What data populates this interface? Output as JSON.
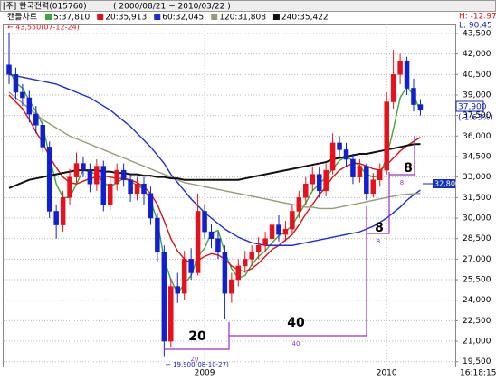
{
  "chart_data": {
    "type": "candlestick",
    "title": "[주] 한국전력(015760)",
    "subtitle": "( 2000/08/21 ~ 2010/03/22 )",
    "high_label": "H: -12.97",
    "low_label": "L: 90.45",
    "chart_label": "캔들차트",
    "max_note": "← 43,550(07-12-24)",
    "min_note": "← 19,900(08-10-27)",
    "last_price_label": "37,900",
    "change_label": "(-1.63%)",
    "level_label": "32,800",
    "time_label": "16:18:15",
    "categories": [
      null,
      null,
      null,
      null,
      null,
      null,
      null,
      null,
      null,
      null,
      null,
      null,
      null,
      null,
      null,
      null,
      null,
      null,
      null,
      null,
      null,
      null,
      null,
      null,
      null,
      null,
      null,
      null,
      null,
      "2009",
      null,
      null,
      null,
      null,
      null,
      null,
      null,
      null,
      null,
      null,
      null,
      null,
      null,
      null,
      null,
      null,
      null,
      null,
      null,
      null,
      null,
      null,
      null,
      null,
      null,
      null,
      "2010",
      null,
      null,
      null,
      null,
      null
    ],
    "open": [
      41200,
      40500,
      39200,
      38800,
      37600,
      36800,
      35200,
      30500,
      29500,
      31500,
      33000,
      34000,
      33500,
      32500,
      33800,
      31000,
      32500,
      33500,
      32800,
      31800,
      32500,
      31800,
      30000,
      27500,
      21000,
      25000,
      24500,
      27000,
      26000,
      30500,
      29000,
      28500,
      27500,
      24500,
      25500,
      26500,
      27000,
      27500,
      28000,
      28500,
      29500,
      28800,
      29200,
      30500,
      31500,
      32500,
      33200,
      32000,
      33500,
      35500,
      35000,
      34300,
      33000,
      33800,
      31800,
      32800,
      33500,
      38500,
      40500,
      41500,
      39500,
      38300
    ],
    "high": [
      43550,
      41000,
      39800,
      39300,
      38200,
      37300,
      35600,
      31000,
      32000,
      33600,
      34800,
      34500,
      34000,
      34300,
      34200,
      33000,
      34000,
      34000,
      33200,
      33000,
      33000,
      32300,
      30400,
      28000,
      25600,
      26000,
      27600,
      27800,
      31800,
      31000,
      29600,
      29000,
      28000,
      26000,
      27000,
      27600,
      28000,
      28600,
      29000,
      30000,
      30200,
      29800,
      31000,
      32000,
      33000,
      33800,
      33700,
      34000,
      36200,
      36000,
      35500,
      34700,
      34300,
      34000,
      33300,
      34000,
      39200,
      42300,
      42000,
      41800,
      40200,
      38700
    ],
    "low": [
      39800,
      38700,
      38200,
      37000,
      36200,
      34800,
      30000,
      28500,
      29000,
      31000,
      32600,
      33000,
      31900,
      32000,
      30500,
      30600,
      32000,
      32300,
      31200,
      31300,
      31000,
      29500,
      26800,
      19900,
      20600,
      23800,
      24000,
      25500,
      25800,
      28500,
      27800,
      27000,
      22600,
      23800,
      25000,
      26000,
      26500,
      27000,
      27500,
      28000,
      28300,
      28300,
      28800,
      30000,
      31000,
      32000,
      31500,
      31600,
      33200,
      34500,
      33800,
      32500,
      32600,
      31300,
      31500,
      32300,
      33200,
      38000,
      39800,
      39000,
      37800,
      37500
    ],
    "close": [
      40500,
      39200,
      38800,
      37600,
      36800,
      35200,
      30500,
      29500,
      31500,
      33000,
      34000,
      33500,
      32500,
      33800,
      31000,
      32500,
      33500,
      32800,
      31800,
      32500,
      31800,
      30000,
      27500,
      21000,
      25000,
      24500,
      27000,
      26000,
      30500,
      29000,
      28500,
      27500,
      24500,
      25500,
      26500,
      27000,
      27500,
      28000,
      28500,
      29500,
      28800,
      29200,
      30500,
      31500,
      32500,
      33200,
      32000,
      33500,
      35500,
      35000,
      34300,
      33000,
      33800,
      31800,
      32800,
      33500,
      38500,
      40500,
      41500,
      39500,
      38300,
      37900
    ],
    "up_color": "#e8101a",
    "down_color": "#1020d0",
    "series": [
      {
        "name": "5:37,810",
        "color": "#3aa83a",
        "values": [
          40800,
          39900,
          39500,
          38600,
          37800,
          36800,
          34500,
          32500,
          31500,
          31500,
          32500,
          33500,
          33400,
          33200,
          32600,
          32300,
          32600,
          32900,
          32700,
          32400,
          32100,
          31300,
          29800,
          27000,
          25500,
          24500,
          25200,
          25800,
          27200,
          27800,
          28900,
          29100,
          27500,
          26300,
          25600,
          25800,
          26600,
          27200,
          27600,
          28200,
          28700,
          29000,
          29500,
          30300,
          31100,
          32000,
          32500,
          33000,
          33600,
          34200,
          34500,
          34200,
          33800,
          33200,
          33000,
          33100,
          34500,
          36500,
          38800,
          39600,
          39000,
          37810
        ]
      },
      {
        "name": "20:35,913",
        "color": "#e01010",
        "values": [
          39000,
          38500,
          38000,
          37200,
          36300,
          35500,
          34500,
          33700,
          33000,
          32600,
          32500,
          32700,
          32900,
          33000,
          33100,
          33000,
          32900,
          32900,
          32800,
          32600,
          32300,
          31800,
          31000,
          29800,
          28500,
          27600,
          27000,
          26700,
          26900,
          27200,
          27400,
          27300,
          27000,
          26500,
          26200,
          26100,
          26300,
          26700,
          27200,
          27700,
          28000,
          28400,
          28800,
          29500,
          30300,
          31000,
          31700,
          32300,
          33000,
          33500,
          33800,
          34000,
          34000,
          33800,
          33600,
          33500,
          33900,
          34400,
          34900,
          35300,
          35600,
          35913
        ]
      },
      {
        "name": "60:32,045",
        "color": "#1a2ee0",
        "values": [
          40500,
          40400,
          40300,
          40200,
          40100,
          40000,
          39900,
          39800,
          39600,
          39400,
          39200,
          39000,
          38800,
          38500,
          38200,
          37900,
          37500,
          37100,
          36700,
          36200,
          35700,
          35200,
          34600,
          34000,
          33200,
          32600,
          32000,
          31400,
          30900,
          30400,
          30000,
          29600,
          29200,
          28900,
          28600,
          28400,
          28200,
          28100,
          28000,
          28000,
          28000,
          28000,
          28000,
          28100,
          28200,
          28300,
          28400,
          28500,
          28600,
          28700,
          28800,
          28900,
          29000,
          29200,
          29400,
          29700,
          30000,
          30400,
          30800,
          31300,
          31700,
          32045
        ]
      },
      {
        "name": "120:31,808",
        "color": "#9a9a78",
        "values": [
          39200,
          38800,
          38400,
          38000,
          37600,
          37200,
          36900,
          36600,
          36300,
          36000,
          35800,
          35600,
          35400,
          35200,
          35000,
          34800,
          34600,
          34400,
          34200,
          34000,
          33800,
          33600,
          33400,
          33200,
          33000,
          32800,
          32600,
          32500,
          32400,
          32300,
          32200,
          32100,
          32000,
          31900,
          31800,
          31700,
          31600,
          31500,
          31400,
          31300,
          31200,
          31100,
          31000,
          30900,
          30800,
          30800,
          30700,
          30700,
          30700,
          30800,
          30900,
          31000,
          31100,
          31200,
          31300,
          31400,
          31500,
          31600,
          31700,
          31750,
          31780,
          31808
        ]
      },
      {
        "name": "240:35,422",
        "color": "#111111",
        "values": [
          32200,
          32400,
          32600,
          32800,
          32900,
          33000,
          33100,
          33200,
          33300,
          33400,
          33500,
          33500,
          33500,
          33500,
          33400,
          33400,
          33300,
          33300,
          33200,
          33200,
          33100,
          33100,
          33000,
          33000,
          32900,
          32900,
          32800,
          32800,
          32800,
          32800,
          32800,
          32800,
          32800,
          32800,
          32800,
          32900,
          33000,
          33100,
          33200,
          33300,
          33400,
          33500,
          33600,
          33700,
          33800,
          33900,
          34000,
          34100,
          34300,
          34400,
          34500,
          34600,
          34700,
          34700,
          34800,
          34900,
          35000,
          35100,
          35200,
          35300,
          35400,
          35422
        ]
      }
    ],
    "ylim": [
      19150,
      44160
    ],
    "yticks": [
      {
        "value": 19500,
        "label": "19,500"
      },
      {
        "value": 21000,
        "label": "21,000"
      },
      {
        "value": 22500,
        "label": "22,500"
      },
      {
        "value": 24000,
        "label": "24,000"
      },
      {
        "value": 25500,
        "label": "25,500"
      },
      {
        "value": 27000,
        "label": "27,000"
      },
      {
        "value": 28500,
        "label": "28,500"
      },
      {
        "value": 30000,
        "label": "30,000"
      },
      {
        "value": 31500,
        "label": "31,500"
      },
      {
        "value": 33000,
        "label": "33,000"
      },
      {
        "value": 34500,
        "label": "34,500"
      },
      {
        "value": 36000,
        "label": "36,000"
      },
      {
        "value": 37500,
        "label": "37,500"
      },
      {
        "value": 39000,
        "label": "39,000"
      },
      {
        "value": 40500,
        "label": "40,500"
      },
      {
        "value": 42000,
        "label": "42,000"
      },
      {
        "value": 43500,
        "label": "43,500"
      }
    ],
    "grid": true,
    "annotations": [
      {
        "big": "20",
        "small": "20"
      },
      {
        "big": "40",
        "small": "40"
      },
      {
        "big": "8",
        "small": "8"
      },
      {
        "big": "8",
        "small": "8"
      }
    ]
  }
}
